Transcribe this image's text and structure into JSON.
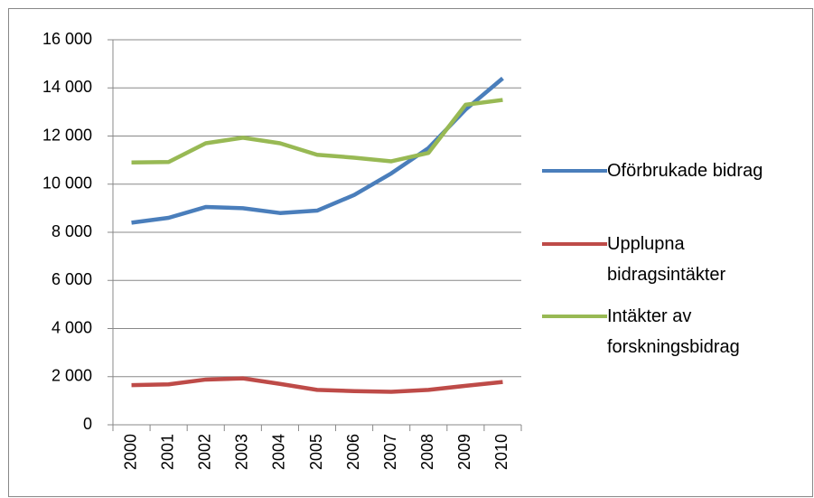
{
  "chart_data": {
    "type": "line",
    "categories": [
      "2000",
      "2001",
      "2002",
      "2003",
      "2004",
      "2005",
      "2006",
      "2007",
      "2008",
      "2009",
      "2010"
    ],
    "series": [
      {
        "name": "Oförbrukade bidrag",
        "color": "#4a7ebb",
        "values": [
          8400,
          8600,
          9050,
          9000,
          8800,
          8900,
          9550,
          10450,
          11500,
          13100,
          14400
        ]
      },
      {
        "name": "Upplupna bidragsintäkter",
        "color": "#be4b48",
        "values": [
          1650,
          1680,
          1880,
          1930,
          1700,
          1450,
          1400,
          1370,
          1450,
          1620,
          1780
        ]
      },
      {
        "name": "Intäkter av forskningsbidrag",
        "color": "#98b954",
        "values": [
          10900,
          10920,
          11700,
          11930,
          11700,
          11220,
          11100,
          10950,
          11300,
          13300,
          13500
        ]
      }
    ],
    "ylim": [
      0,
      16000
    ],
    "yticks": [
      0,
      {
        "value": 2000,
        "label": "2 000"
      },
      {
        "value": 4000,
        "label": "4 000"
      },
      {
        "value": 6000,
        "label": "6 000"
      },
      {
        "value": 8000,
        "label": "8 000"
      },
      {
        "value": 10000,
        "label": "10 000"
      },
      {
        "value": 12000,
        "label": "12 000"
      },
      {
        "value": 14000,
        "label": "14 000"
      },
      {
        "value": 16000,
        "label": "16 000"
      }
    ],
    "grid": true
  }
}
